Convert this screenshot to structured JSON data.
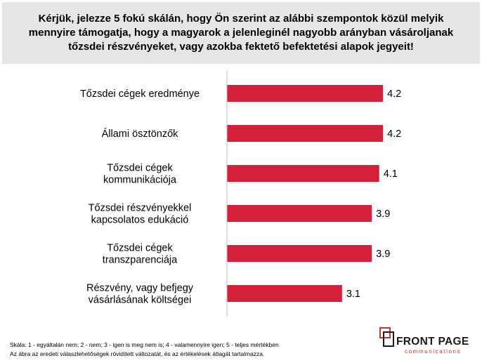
{
  "question": "Kérjük, jelezze 5 fokú skálán, hogy Ön szerint az alábbi szempontok közül melyik mennyire támogatja, hogy a magyarok a jelenleginél nagyobb arányban vásároljanak tőzsdei részvényeket, vagy azokba fektető befektetési alapok jegyeit!",
  "footnotes": {
    "scale": "Skála: 1 - egyáltalán nem; 2 - nem; 3 - igen is meg nem is; 4 - valamennyire igen; 5 - teljes mértékben",
    "note": "Az ábra az eredeti válaszlehetőségek rövidített változatát, és az értékelések átlagát tartalmazza."
  },
  "logo": {
    "name": "FRONT PAGE",
    "sub": "communications"
  },
  "colors": {
    "bar": "#d5203a",
    "question_bg": "#e6e6e6",
    "logo_accent": "#c0392b"
  },
  "chart_data": {
    "type": "bar",
    "orientation": "horizontal",
    "categories": [
      [
        "Tőzsdei cégek eredménye"
      ],
      [
        "Állami ösztönzők"
      ],
      [
        "Tőzsdei cégek",
        "kommunikációja"
      ],
      [
        "Tőzsdei részvényekkel",
        "kapcsolatos edukáció"
      ],
      [
        "Tőzsdei cégek",
        "transzparenciája"
      ],
      [
        "Részvény, vagy befjegy",
        "vásárlásának költségei"
      ]
    ],
    "values": [
      4.2,
      4.2,
      4.1,
      3.9,
      3.9,
      3.1
    ],
    "value_labels": [
      "4.2",
      "4.2",
      "4.1",
      "3.9",
      "3.9",
      "3.1"
    ],
    "xlim": [
      0,
      4.2
    ],
    "grid": false,
    "legend": false
  }
}
